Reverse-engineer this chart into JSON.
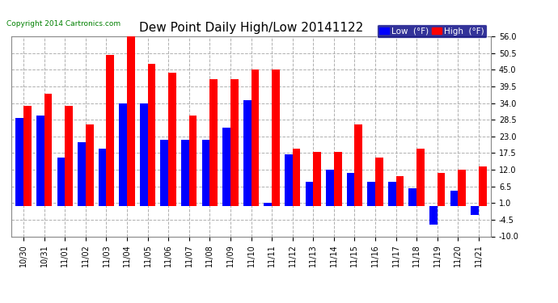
{
  "title": "Dew Point Daily High/Low 20141122",
  "copyright": "Copyright 2014 Cartronics.com",
  "legend_low": "Low  (°F)",
  "legend_high": "High  (°F)",
  "dates": [
    "10/30",
    "10/31",
    "11/01",
    "11/02",
    "11/03",
    "11/04",
    "11/05",
    "11/06",
    "11/07",
    "11/08",
    "11/09",
    "11/10",
    "11/11",
    "11/12",
    "11/13",
    "11/14",
    "11/15",
    "11/16",
    "11/17",
    "11/18",
    "11/19",
    "11/20",
    "11/21"
  ],
  "high": [
    33,
    37,
    33,
    27,
    50,
    57,
    47,
    44,
    30,
    42,
    42,
    45,
    45,
    19,
    18,
    18,
    27,
    16,
    10,
    19,
    11,
    12,
    13
  ],
  "low": [
    29,
    30,
    16,
    21,
    19,
    34,
    34,
    22,
    22,
    22,
    26,
    35,
    1,
    17,
    8,
    12,
    11,
    8,
    8,
    6,
    -6,
    5,
    -3
  ],
  "ylim_min": -10.0,
  "ylim_max": 56.0,
  "yticks": [
    -10.0,
    -4.5,
    1.0,
    6.5,
    12.0,
    17.5,
    23.0,
    28.5,
    34.0,
    39.5,
    45.0,
    50.5,
    56.0
  ],
  "bar_width": 0.38,
  "color_high": "#ff0000",
  "color_low": "#0000ff",
  "bg_color": "#ffffff",
  "grid_color": "#b0b0b0",
  "title_fontsize": 11,
  "tick_fontsize": 7,
  "legend_fontsize": 7.5
}
